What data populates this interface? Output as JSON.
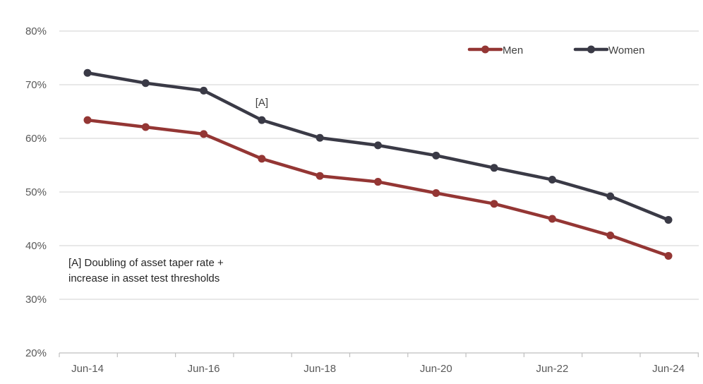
{
  "chart_data": {
    "type": "line",
    "x": [
      "Jun-14",
      "Jun-15",
      "Jun-16",
      "Jun-17",
      "Jun-18",
      "Jun-19",
      "Jun-20",
      "Jun-21",
      "Jun-22",
      "Jun-23",
      "Jun-24"
    ],
    "x_tick_labels": [
      "Jun-14",
      "Jun-16",
      "Jun-18",
      "Jun-20",
      "Jun-22",
      "Jun-24"
    ],
    "y_tick_labels": [
      "20%",
      "30%",
      "40%",
      "50%",
      "60%",
      "70%",
      "80%"
    ],
    "ylim": [
      20,
      80
    ],
    "y_unit": "%",
    "grid": "horizontal",
    "legend_position": "top-right",
    "series": [
      {
        "name": "Men",
        "color": "#943634",
        "values": [
          63.4,
          62.1,
          60.8,
          56.2,
          53.0,
          51.9,
          49.8,
          47.8,
          45.0,
          41.9,
          38.1
        ]
      },
      {
        "name": "Women",
        "color": "#3a3a46",
        "values": [
          72.2,
          70.3,
          68.9,
          63.4,
          60.1,
          58.7,
          56.8,
          54.5,
          52.3,
          49.2,
          44.8
        ]
      }
    ],
    "marker": {
      "label": "[A]",
      "x": "Jun-17"
    },
    "annotation": {
      "line1": "[A] Doubling of asset taper rate +",
      "line2": "increase in asset test thresholds"
    }
  }
}
